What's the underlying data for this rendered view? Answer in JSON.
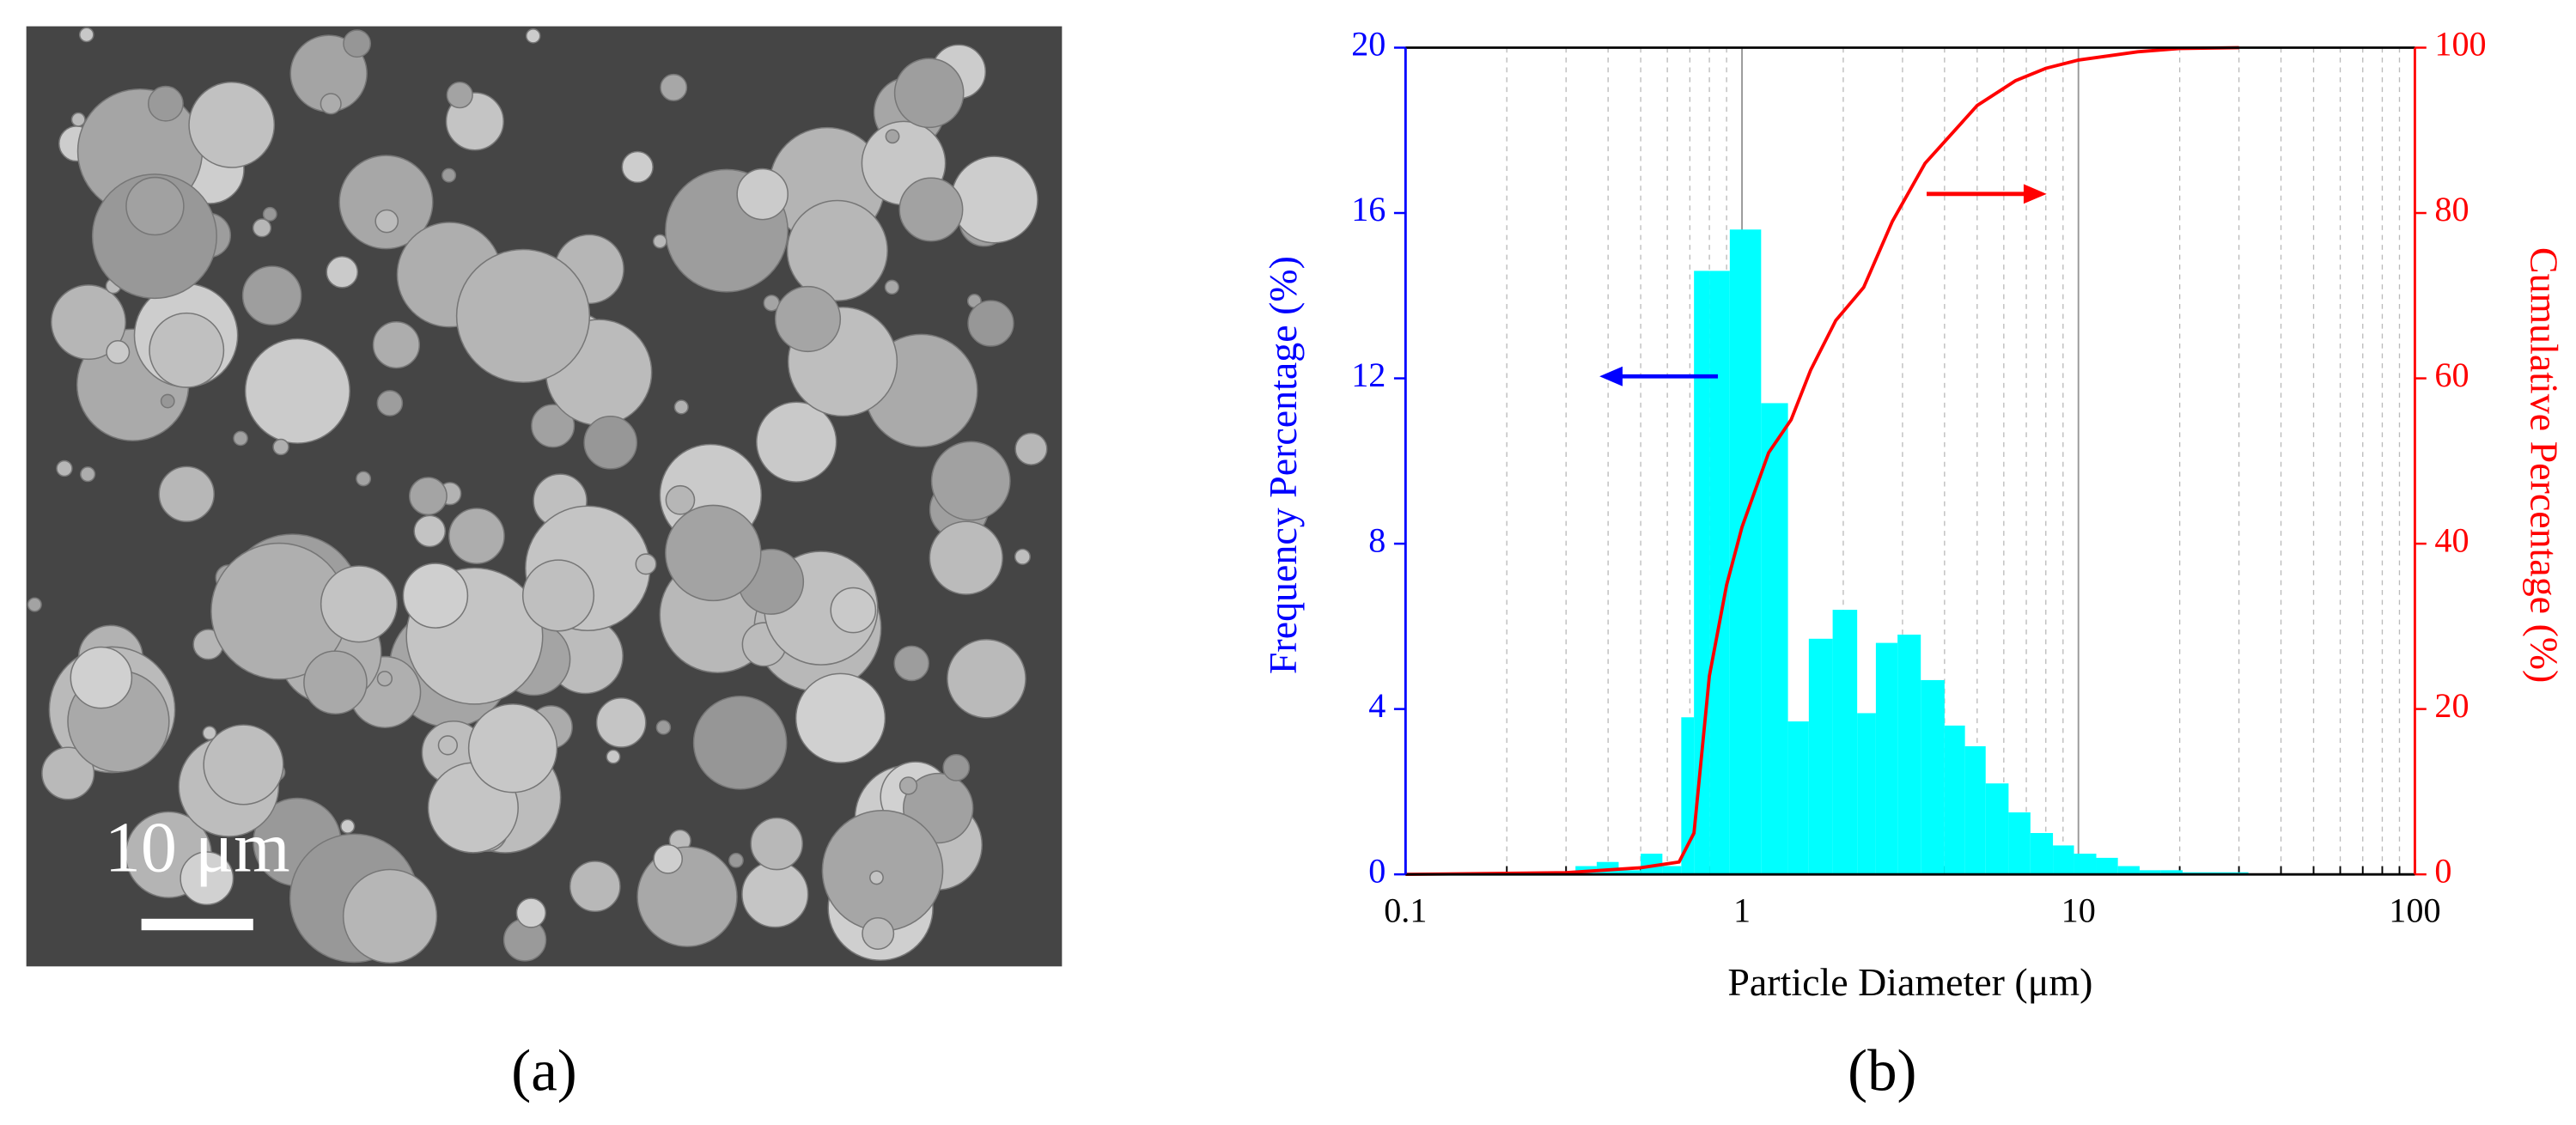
{
  "figure": {
    "panel_a_label": "(a)",
    "scale_bar_label": "10 μm",
    "panel_b_label": "(b)"
  },
  "chart_data": {
    "type": "histogram",
    "xlabel": "Particle Diameter (μm)",
    "ylabel": "Frequency Percentage (%)",
    "y2label": "Cumulative Percentage (%)",
    "xscale": "log",
    "xlim": [
      0.1,
      100
    ],
    "xticks": [
      0.1,
      1,
      10,
      100
    ],
    "ylim": [
      0,
      20
    ],
    "yticks": [
      0,
      4,
      8,
      12,
      16,
      20
    ],
    "y2lim": [
      0,
      100
    ],
    "y2ticks": [
      0,
      20,
      40,
      60,
      80,
      100
    ],
    "grid": true,
    "bins": [
      0.32,
      0.37,
      0.43,
      0.5,
      0.58,
      0.66,
      0.72,
      0.8,
      0.92,
      1.14,
      1.37,
      1.58,
      1.86,
      2.2,
      2.5,
      2.9,
      3.4,
      4.0,
      4.6,
      5.3,
      6.2,
      7.2,
      8.4,
      9.7,
      11.3,
      13.1,
      15.2,
      17.6,
      20.4,
      23.7,
      32
    ],
    "series": [
      {
        "type": "histogram",
        "color": "#00ffff",
        "values": [
          0.2,
          0.3,
          0.1,
          0.5,
          0.2,
          3.8,
          14.6,
          14.6,
          15.6,
          11.4,
          3.7,
          5.7,
          6.4,
          3.9,
          5.6,
          5.8,
          4.7,
          3.6,
          3.1,
          2.2,
          1.5,
          1.0,
          0.7,
          0.5,
          0.4,
          0.2,
          0.1,
          0.1,
          0.05,
          0.05
        ]
      },
      {
        "type": "line",
        "axis": "y2",
        "color": "#ff0000",
        "x": [
          0.1,
          0.3,
          0.5,
          0.65,
          0.72,
          0.8,
          0.9,
          1.0,
          1.2,
          1.4,
          1.6,
          1.9,
          2.3,
          2.8,
          3.5,
          5,
          6.5,
          8,
          10,
          15,
          20,
          30
        ],
        "values": [
          0,
          0.2,
          0.8,
          1.5,
          5,
          24,
          35,
          42,
          51,
          55,
          61,
          67,
          71,
          79,
          86,
          93,
          96,
          97.5,
          98.5,
          99.5,
          99.9,
          100
        ]
      }
    ]
  }
}
